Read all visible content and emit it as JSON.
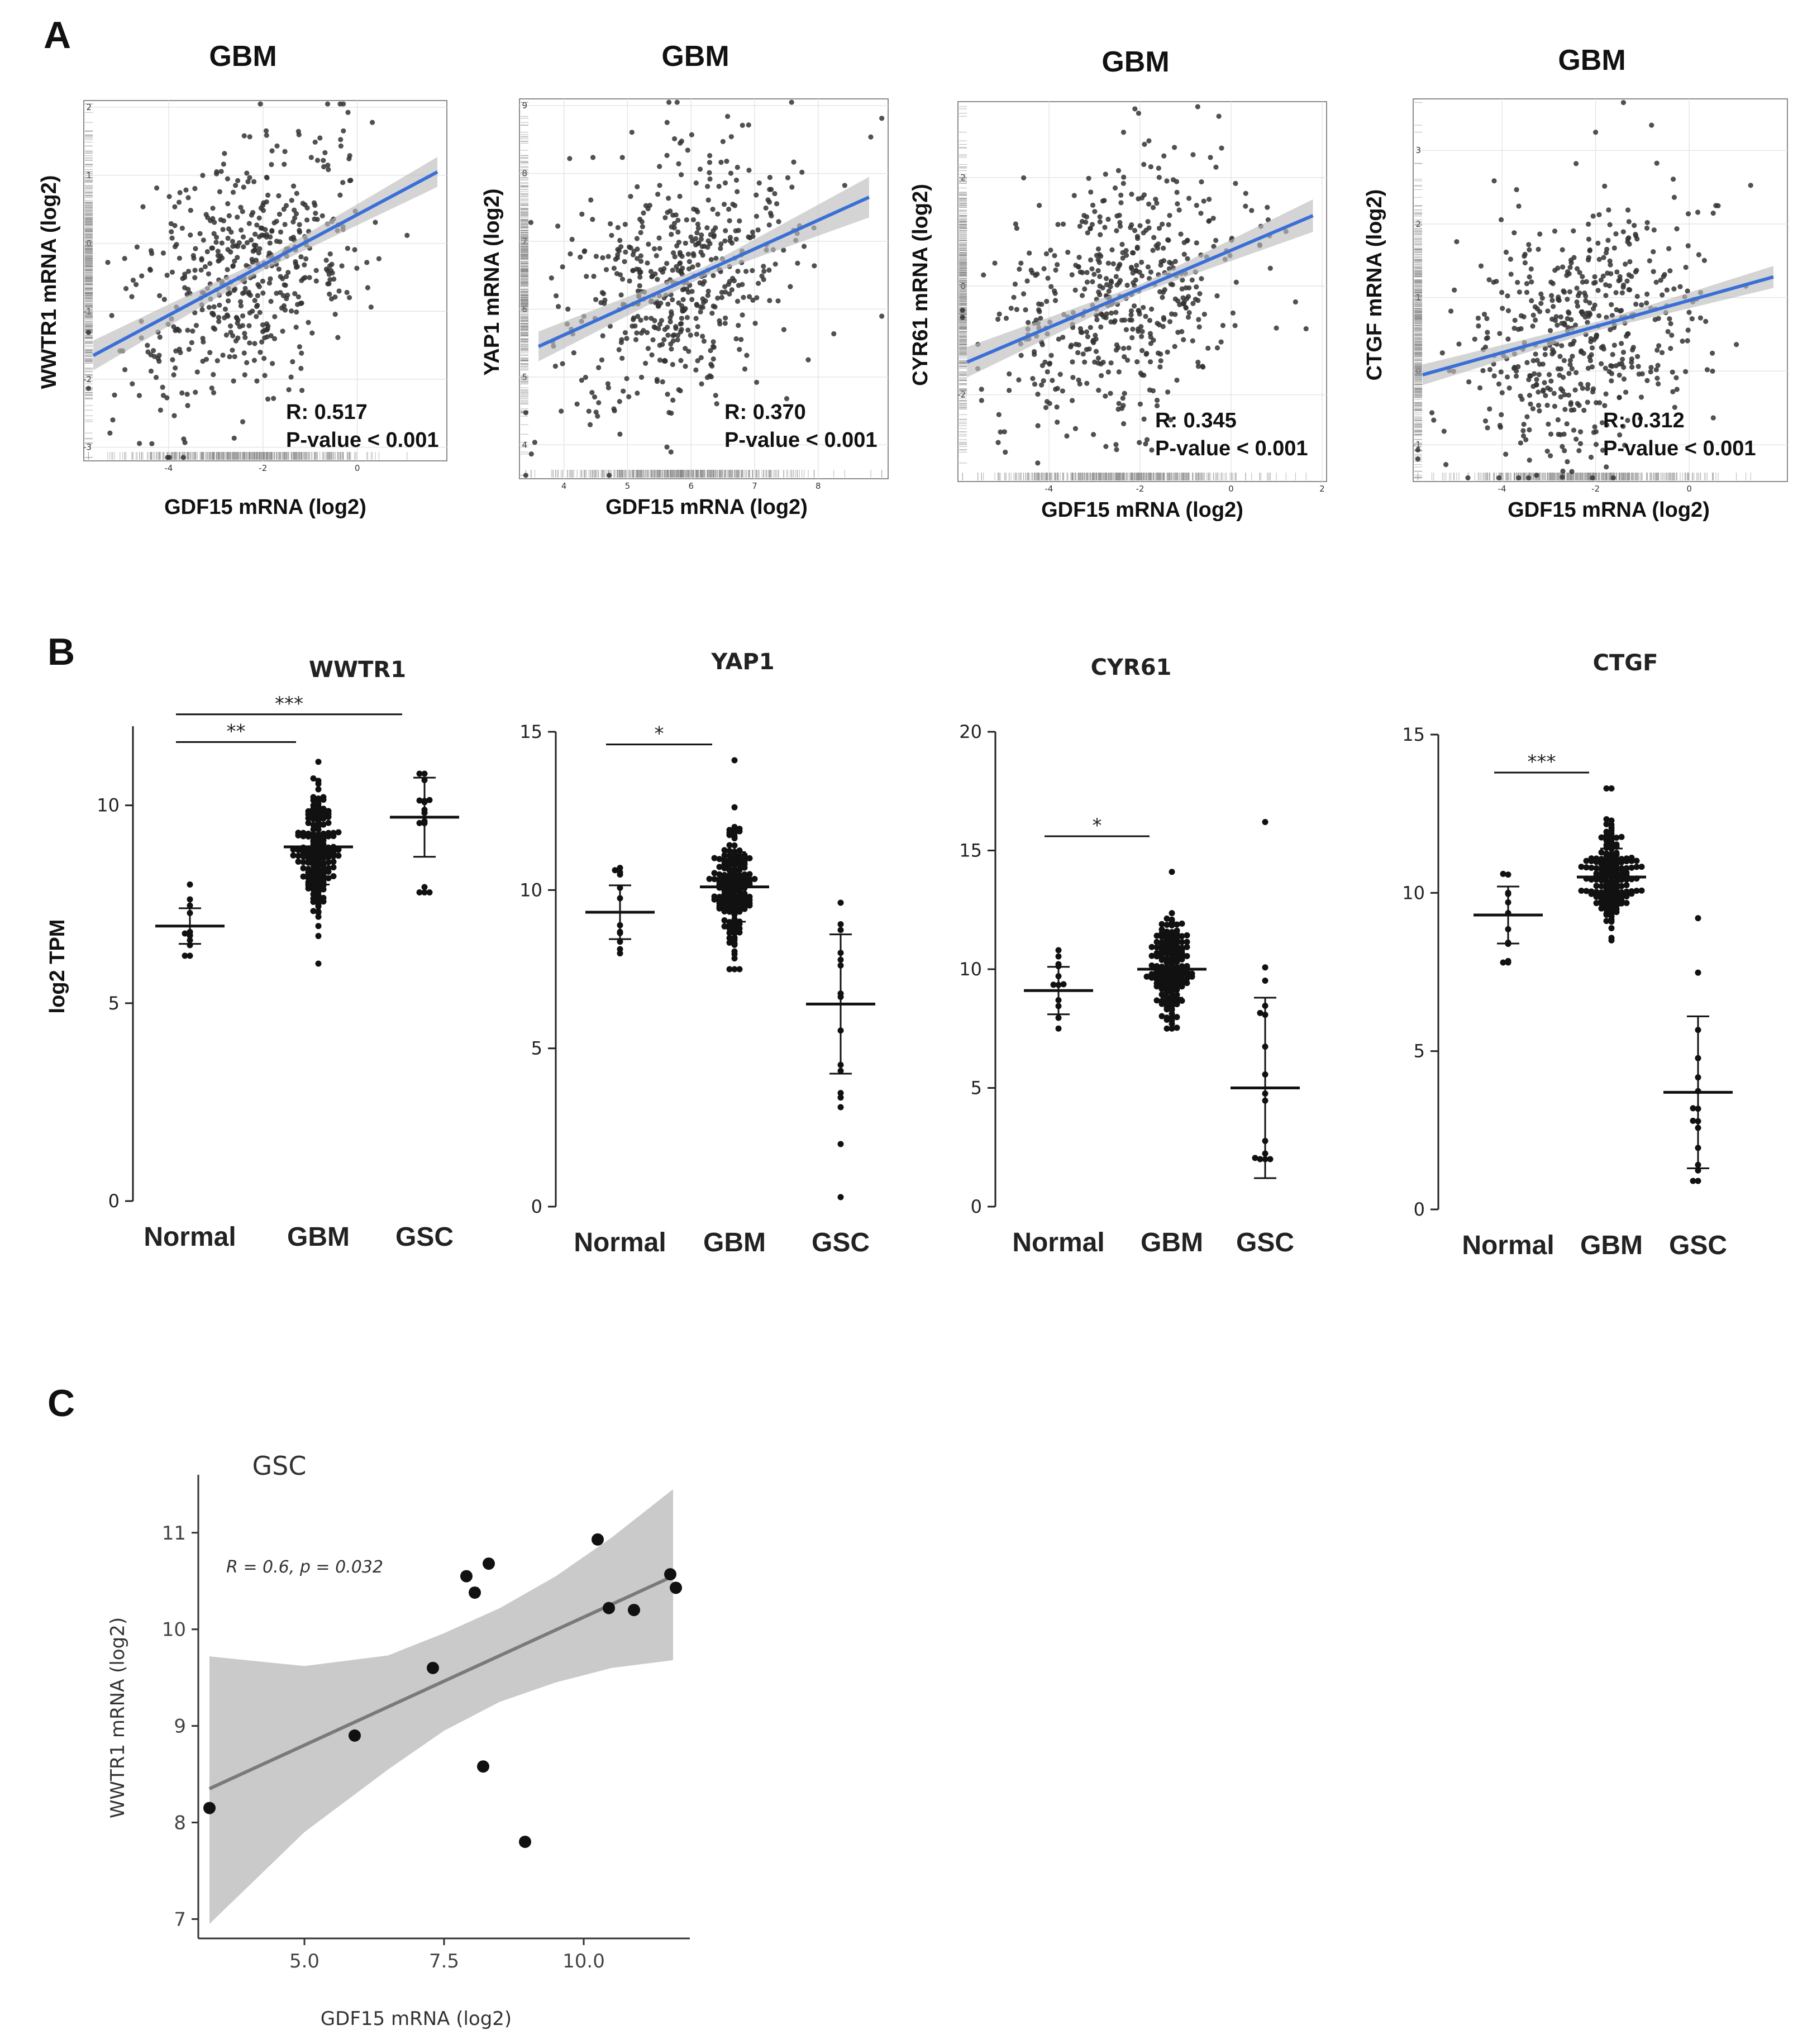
{
  "panels": {
    "a": "A",
    "b": "B",
    "c": "C"
  },
  "colors": {
    "fit_blue": "#3a6fd8",
    "ci_gray": "#bdbdbd",
    "dot": "#333333",
    "grid": "#e6e6e6"
  },
  "chart_data": [
    {
      "id": "a1",
      "type": "scatter",
      "title": "GBM",
      "xlabel": "GDF15 mRNA (log2)",
      "ylabel": "WWTR1 mRNA (log2)",
      "xlim": [
        -5.8,
        1.9
      ],
      "ylim": [
        -3.2,
        2.1
      ],
      "xticks": [
        -4,
        -2,
        0
      ],
      "yticks": [
        -3,
        -2,
        -1,
        0,
        1,
        2
      ],
      "fit": {
        "x": [
          -5.6,
          1.7
        ],
        "y": [
          -1.65,
          1.05
        ]
      },
      "ci_half_width": [
        0.22,
        0.08,
        0.22
      ],
      "n_points": 520,
      "r": 0.517,
      "r_text": "R: 0.517",
      "p_text": "P-value < 0.001"
    },
    {
      "id": "a2",
      "type": "scatter",
      "title": "GBM",
      "xlabel": "GDF15 mRNA (log2)",
      "ylabel": "YAP1 mRNA (log2)",
      "xlim": [
        3.3,
        9.1
      ],
      "ylim": [
        3.5,
        9.1
      ],
      "xticks": [
        4,
        5,
        6,
        7,
        8
      ],
      "yticks": [
        4,
        5,
        6,
        7,
        8,
        9
      ],
      "fit": {
        "x": [
          3.6,
          8.8
        ],
        "y": [
          5.45,
          7.65
        ]
      },
      "ci_half_width": [
        0.22,
        0.07,
        0.3
      ],
      "n_points": 520,
      "r": 0.37,
      "r_text": "R: 0.370",
      "p_text": "P-value < 0.001"
    },
    {
      "id": "a3",
      "type": "scatter",
      "title": "GBM",
      "xlabel": "GDF15 mRNA (log2)",
      "ylabel": "CYR61 mRNA (log2)",
      "xlim": [
        -6,
        2.1
      ],
      "ylim": [
        -3.6,
        3.4
      ],
      "xticks": [
        -4,
        -2,
        0,
        2
      ],
      "yticks": [
        -2,
        0,
        2
      ],
      "fit": {
        "x": [
          -5.8,
          1.8
        ],
        "y": [
          -1.4,
          1.3
        ]
      },
      "ci_half_width": [
        0.28,
        0.08,
        0.3
      ],
      "n_points": 520,
      "r": 0.345,
      "r_text": "R: 0.345",
      "p_text": "P-value < 0.001"
    },
    {
      "id": "a4",
      "type": "scatter",
      "title": "GBM",
      "xlabel": "GDF15 mRNA (log2)",
      "ylabel": "CTGF mRNA (log2)",
      "xlim": [
        -5.9,
        2.1
      ],
      "ylim": [
        -1.5,
        3.7
      ],
      "xticks": [
        -4,
        -2,
        0
      ],
      "yticks": [
        -1,
        0,
        1,
        2,
        3
      ],
      "fit": {
        "x": [
          -5.7,
          1.8
        ],
        "y": [
          -0.05,
          1.28
        ]
      },
      "ci_half_width": [
        0.14,
        0.06,
        0.15
      ],
      "n_points": 520,
      "r": 0.312,
      "r_text": "R: 0.312",
      "p_text": "P-value < 0.001"
    },
    {
      "id": "b1",
      "type": "dot",
      "title": "WWTR1",
      "ylabel": "log2 TPM",
      "categories": [
        "Normal",
        "GBM",
        "GSC"
      ],
      "ylim": [
        0,
        12
      ],
      "yticks": [
        0,
        5,
        10
      ],
      "groups": [
        {
          "n": 10,
          "mean": 6.95,
          "sd": 0.45,
          "lo": 6.2,
          "hi": 8.0
        },
        {
          "n": 170,
          "mean": 8.95,
          "sd": 0.95,
          "lo": 6.0,
          "hi": 11.1
        },
        {
          "n": 14,
          "mean": 9.7,
          "sd": 1.0,
          "lo": 7.8,
          "hi": 10.8
        }
      ],
      "sig": [
        {
          "from": 0,
          "to": 1,
          "y": 11.6,
          "label": "**"
        },
        {
          "from": 0,
          "to": 2,
          "y": 12.3,
          "label": "***"
        }
      ]
    },
    {
      "id": "b2",
      "type": "dot",
      "title": "YAP1",
      "categories": [
        "Normal",
        "GBM",
        "GSC"
      ],
      "ylim": [
        0,
        15
      ],
      "yticks": [
        0,
        5,
        10,
        15
      ],
      "groups": [
        {
          "n": 10,
          "mean": 9.3,
          "sd": 0.85,
          "lo": 8.0,
          "hi": 10.7
        },
        {
          "n": 170,
          "mean": 10.1,
          "sd": 1.1,
          "lo": 7.5,
          "hi": 14.1
        },
        {
          "n": 14,
          "mean": 6.4,
          "sd": 2.2,
          "lo": 0.3,
          "hi": 9.6
        }
      ],
      "sig": [
        {
          "from": 0,
          "to": 1,
          "y": 14.6,
          "label": "*"
        }
      ]
    },
    {
      "id": "b3",
      "type": "dot",
      "title": "CYR61",
      "categories": [
        "Normal",
        "GBM",
        "GSC"
      ],
      "ylim": [
        0,
        20
      ],
      "yticks": [
        0,
        5,
        10,
        15,
        20
      ],
      "groups": [
        {
          "n": 10,
          "mean": 9.1,
          "sd": 1.0,
          "lo": 7.5,
          "hi": 10.8
        },
        {
          "n": 170,
          "mean": 10.0,
          "sd": 1.2,
          "lo": 7.5,
          "hi": 14.1
        },
        {
          "n": 14,
          "mean": 5.0,
          "sd": 3.8,
          "lo": 2.0,
          "hi": 16.2
        }
      ],
      "sig": [
        {
          "from": 0,
          "to": 1,
          "y": 15.6,
          "label": "*"
        }
      ]
    },
    {
      "id": "b4",
      "type": "dot",
      "title": "CTGF",
      "categories": [
        "Normal",
        "GBM",
        "GSC"
      ],
      "ylim": [
        0,
        15
      ],
      "yticks": [
        0,
        5,
        10,
        15
      ],
      "groups": [
        {
          "n": 10,
          "mean": 9.3,
          "sd": 0.9,
          "lo": 7.8,
          "hi": 10.6
        },
        {
          "n": 170,
          "mean": 10.5,
          "sd": 0.9,
          "lo": 8.5,
          "hi": 13.3
        },
        {
          "n": 14,
          "mean": 3.7,
          "sd": 2.4,
          "lo": 0.9,
          "hi": 9.2
        }
      ],
      "sig": [
        {
          "from": 0,
          "to": 1,
          "y": 13.8,
          "label": "***"
        }
      ]
    },
    {
      "id": "c1",
      "type": "scatter",
      "title": "GSC",
      "xlabel": "GDF15 mRNA (log2)",
      "ylabel": "WWTR1 mRNA (log2)",
      "xlim": [
        3.1,
        11.9
      ],
      "ylim": [
        6.8,
        11.6
      ],
      "xticks": [
        5.0,
        7.5,
        10.0
      ],
      "xtick_labels": [
        "5.0",
        "7.5",
        "10.0"
      ],
      "yticks": [
        7,
        8,
        9,
        10,
        11
      ],
      "annotation": "R = 0.6, p = 0.032",
      "points": [
        {
          "x": 3.3,
          "y": 8.15
        },
        {
          "x": 5.9,
          "y": 8.9
        },
        {
          "x": 7.3,
          "y": 9.6
        },
        {
          "x": 7.9,
          "y": 10.55
        },
        {
          "x": 8.05,
          "y": 10.38
        },
        {
          "x": 8.2,
          "y": 8.58
        },
        {
          "x": 8.3,
          "y": 10.68
        },
        {
          "x": 8.95,
          "y": 7.8
        },
        {
          "x": 10.25,
          "y": 10.93
        },
        {
          "x": 10.45,
          "y": 10.22
        },
        {
          "x": 10.9,
          "y": 10.2
        },
        {
          "x": 11.55,
          "y": 10.57
        },
        {
          "x": 11.65,
          "y": 10.43
        }
      ],
      "fit": {
        "x": [
          3.3,
          11.6
        ],
        "y": [
          8.35,
          10.55
        ]
      },
      "ci": {
        "x": [
          3.3,
          5.0,
          6.5,
          7.5,
          8.5,
          9.5,
          10.5,
          11.6
        ],
        "lower": [
          6.95,
          7.9,
          8.55,
          8.95,
          9.25,
          9.45,
          9.6,
          9.68
        ],
        "upper": [
          9.72,
          9.62,
          9.73,
          9.96,
          10.22,
          10.55,
          10.95,
          11.45
        ]
      }
    }
  ]
}
